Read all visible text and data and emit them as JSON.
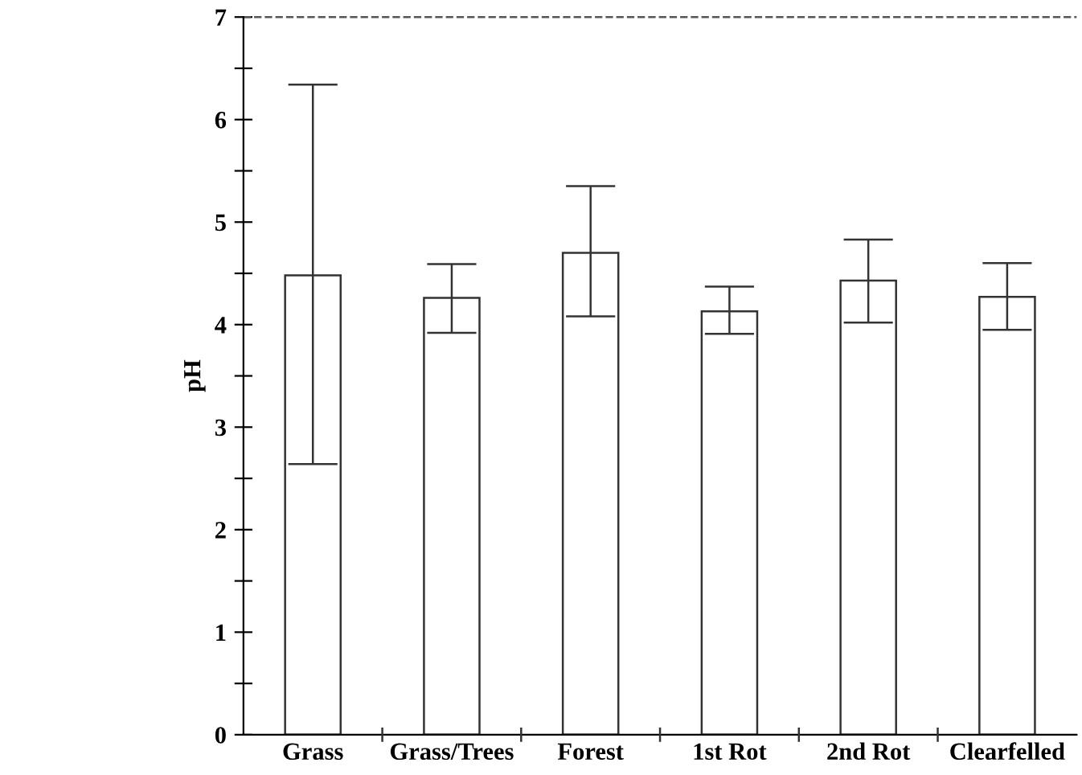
{
  "chart_data": {
    "type": "bar",
    "ylabel": "pH",
    "categories": [
      "Grass",
      "Grass/Trees",
      "Forest",
      "1st Rot",
      "2nd Rot",
      "Clearfelled"
    ],
    "values": [
      4.48,
      4.26,
      4.7,
      4.13,
      4.43,
      4.27
    ],
    "errors": [
      [
        2.64,
        6.34
      ],
      [
        3.92,
        4.59
      ],
      [
        4.08,
        5.35
      ],
      [
        3.91,
        4.37
      ],
      [
        4.02,
        4.83
      ],
      [
        3.95,
        4.6
      ]
    ],
    "color": "#ffffff",
    "ylim": [
      0,
      7
    ],
    "yticks": [
      0,
      {
        "value": 0.5,
        "label": null
      },
      1,
      {
        "value": 1.5,
        "label": null
      },
      2,
      {
        "value": 2.5,
        "label": null
      },
      3,
      {
        "value": 3.5,
        "label": null
      },
      4,
      {
        "value": 4.5,
        "label": null
      },
      5,
      {
        "value": 5.5,
        "label": null
      },
      6,
      {
        "value": 6.5,
        "label": null
      },
      7
    ],
    "ref_lines": [
      {
        "axis": "y",
        "value": 7,
        "label": null,
        "line_style": "dashed",
        "color": "#555555"
      }
    ],
    "grid": false,
    "legend": false
  }
}
